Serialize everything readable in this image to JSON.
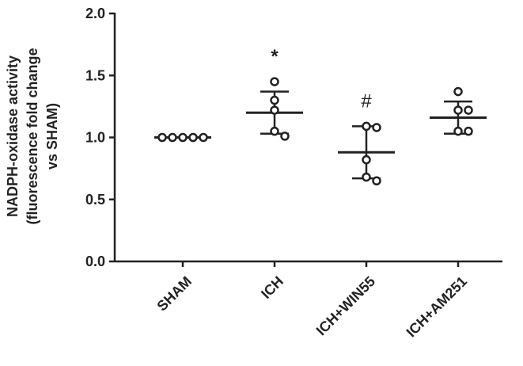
{
  "chart_data": {
    "type": "scatter-dot",
    "ylabel": [
      "NADPH-oxidase activity",
      "(fluorescence fold change",
      "vs SHAM)"
    ],
    "categories": [
      "SHAM",
      "ICH",
      "ICH+WIN55",
      "ICH+AM251"
    ],
    "points": [
      [
        1.0,
        1.0,
        1.0,
        1.0,
        1.0
      ],
      [
        1.45,
        1.3,
        1.22,
        1.05,
        1.01
      ],
      [
        1.09,
        1.08,
        0.82,
        0.68,
        0.65
      ],
      [
        1.37,
        1.22,
        1.22,
        1.05,
        1.05
      ]
    ],
    "means": [
      1.0,
      1.2,
      0.88,
      1.16
    ],
    "errors": [
      0,
      0.17,
      0.21,
      0.13
    ],
    "annotations": [
      null,
      "*",
      "#",
      null
    ],
    "color": "#222222",
    "ylim": [
      0,
      2.0
    ],
    "yticks": [
      {
        "value": 0,
        "label": "0.0"
      },
      0.5,
      {
        "value": 1.0,
        "label": "1.0"
      },
      1.5,
      {
        "value": 2.0,
        "label": "2.0"
      }
    ]
  }
}
